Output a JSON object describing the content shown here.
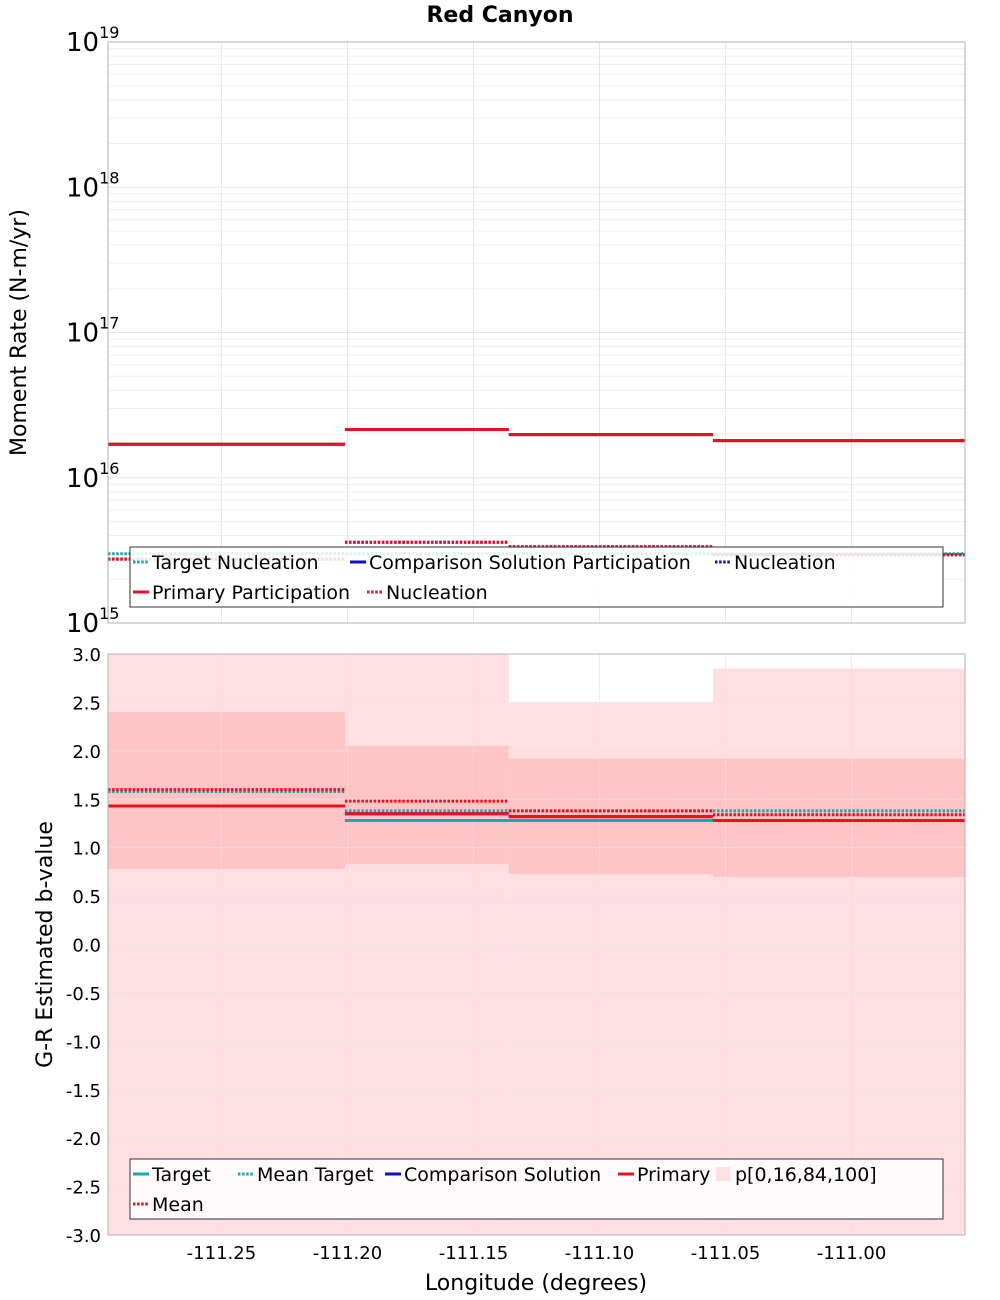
{
  "title": "Red Canyon",
  "colors": {
    "target": "#1aa8a8",
    "comparison": "#1010c8",
    "primary": "#e8121e",
    "band_outer": "#ffdfe1",
    "band_inner": "#ffc4c6",
    "grid": "#e6e6e6"
  },
  "chart_data": [
    {
      "type": "line",
      "subtype": "step",
      "y_scale": "log",
      "ylabel": "Moment Rate (N-m/yr)",
      "xlim": [
        -111.295,
        -110.955
      ],
      "ylim": [
        1000000000000000.0,
        1e+19
      ],
      "y_tick_labels": [
        {
          "base": "10",
          "exp": "15"
        },
        {
          "base": "10",
          "exp": "16"
        },
        {
          "base": "10",
          "exp": "17"
        },
        {
          "base": "10",
          "exp": "18"
        },
        {
          "base": "10",
          "exp": "19"
        }
      ],
      "grid": true,
      "legend_position": "bottom-center",
      "legend": [
        {
          "label": "Target Nucleation",
          "color_key": "target",
          "style": "dotted"
        },
        {
          "label": "Comparison Solution Participation",
          "color_key": "comparison",
          "style": "solid"
        },
        {
          "label": "Nucleation",
          "color_key": "comparison",
          "style": "dotted"
        },
        {
          "label": "Primary Participation",
          "color_key": "primary",
          "style": "solid"
        },
        {
          "label": "Nucleation",
          "color_key": "primary",
          "style": "dotted"
        }
      ],
      "series": [
        {
          "name": "Target Nucleation",
          "color_key": "target",
          "style": "dotted",
          "steps": [
            {
              "x0": -111.295,
              "x1": -110.955,
              "y": 3000000000000000.0
            }
          ]
        },
        {
          "name": "Comparison Solution Participation",
          "color_key": "comparison",
          "style": "solid",
          "steps": [
            {
              "x0": -111.295,
              "x1": -111.201,
              "y": 1.7e+16
            },
            {
              "x0": -111.201,
              "x1": -111.136,
              "y": 2.15e+16
            },
            {
              "x0": -111.136,
              "x1": -111.055,
              "y": 1.98e+16
            },
            {
              "x0": -111.055,
              "x1": -110.955,
              "y": 1.8e+16
            }
          ]
        },
        {
          "name": "Comparison Solution Nucleation",
          "color_key": "comparison",
          "style": "dotted",
          "steps": [
            {
              "x0": -111.295,
              "x1": -111.201,
              "y": 2750000000000000.0
            },
            {
              "x0": -111.201,
              "x1": -111.136,
              "y": 3600000000000000.0
            },
            {
              "x0": -111.136,
              "x1": -111.055,
              "y": 3350000000000000.0
            },
            {
              "x0": -111.055,
              "x1": -110.955,
              "y": 2950000000000000.0
            }
          ]
        },
        {
          "name": "Primary Participation",
          "color_key": "primary",
          "style": "solid",
          "steps": [
            {
              "x0": -111.295,
              "x1": -111.201,
              "y": 1.7e+16
            },
            {
              "x0": -111.201,
              "x1": -111.136,
              "y": 2.15e+16
            },
            {
              "x0": -111.136,
              "x1": -111.055,
              "y": 1.98e+16
            },
            {
              "x0": -111.055,
              "x1": -110.955,
              "y": 1.8e+16
            }
          ]
        },
        {
          "name": "Primary Nucleation",
          "color_key": "primary",
          "style": "dotted",
          "steps": [
            {
              "x0": -111.295,
              "x1": -111.201,
              "y": 2750000000000000.0
            },
            {
              "x0": -111.201,
              "x1": -111.136,
              "y": 3600000000000000.0
            },
            {
              "x0": -111.136,
              "x1": -111.055,
              "y": 3350000000000000.0
            },
            {
              "x0": -111.055,
              "x1": -110.955,
              "y": 2950000000000000.0
            }
          ]
        }
      ]
    },
    {
      "type": "line",
      "subtype": "step",
      "xlabel": "Longitude (degrees)",
      "ylabel": "G-R Estimated b-value",
      "xlim": [
        -111.295,
        -110.955
      ],
      "ylim": [
        -3.0,
        3.0
      ],
      "x_ticks": [
        -111.25,
        -111.2,
        -111.15,
        -111.1,
        -111.05,
        -111.0
      ],
      "x_tick_labels": [
        "-111.25",
        "-111.20",
        "-111.15",
        "-111.10",
        "-111.05",
        "-111.00"
      ],
      "y_ticks": [
        -3.0,
        -2.5,
        -2.0,
        -1.5,
        -1.0,
        -0.5,
        0.0,
        0.5,
        1.0,
        1.5,
        2.0,
        2.5,
        3.0
      ],
      "y_tick_labels": [
        "-3.0",
        "-2.5",
        "-2.0",
        "-1.5",
        "-1.0",
        "-0.5",
        "0.0",
        "0.5",
        "1.0",
        "1.5",
        "2.0",
        "2.5",
        "3.0"
      ],
      "grid": true,
      "legend_position": "bottom-center",
      "legend": [
        {
          "label": "Target",
          "color_key": "target",
          "style": "solid"
        },
        {
          "label": "Mean Target",
          "color_key": "target",
          "style": "dotted"
        },
        {
          "label": "Comparison Solution",
          "color_key": "comparison",
          "style": "solid"
        },
        {
          "label": "Primary",
          "color_key": "primary",
          "style": "solid"
        },
        {
          "label": "p[0,16,84,100]",
          "color_key": "band_outer",
          "style": "box"
        },
        {
          "label": "Mean",
          "color_key": "primary",
          "style": "dotted"
        }
      ],
      "bands": [
        {
          "x0": -111.295,
          "x1": -111.201,
          "p0": -3.0,
          "p16": 0.78,
          "p84": 2.4,
          "p100": 3.0
        },
        {
          "x0": -111.201,
          "x1": -111.136,
          "p0": -3.0,
          "p16": 0.83,
          "p84": 2.05,
          "p100": 3.0
        },
        {
          "x0": -111.136,
          "x1": -111.055,
          "p0": -3.0,
          "p16": 0.73,
          "p84": 1.92,
          "p100": 2.5
        },
        {
          "x0": -111.055,
          "x1": -110.955,
          "p0": -3.0,
          "p16": 0.7,
          "p84": 1.92,
          "p100": 2.85
        }
      ],
      "series": [
        {
          "name": "Target",
          "color_key": "target",
          "style": "solid",
          "steps": [
            {
              "x0": -111.295,
              "x1": -111.201,
              "y": 1.43
            },
            {
              "x0": -111.201,
              "x1": -111.136,
              "y": 1.28
            },
            {
              "x0": -111.136,
              "x1": -111.055,
              "y": 1.28
            },
            {
              "x0": -111.055,
              "x1": -110.955,
              "y": 1.28
            }
          ]
        },
        {
          "name": "Mean Target",
          "color_key": "target",
          "style": "dotted",
          "steps": [
            {
              "x0": -111.295,
              "x1": -111.201,
              "y": 1.58
            },
            {
              "x0": -111.201,
              "x1": -111.136,
              "y": 1.38
            },
            {
              "x0": -111.136,
              "x1": -111.055,
              "y": 1.38
            },
            {
              "x0": -111.055,
              "x1": -110.955,
              "y": 1.38
            }
          ]
        },
        {
          "name": "Comparison Solution",
          "color_key": "comparison",
          "style": "solid",
          "steps": [
            {
              "x0": -111.295,
              "x1": -111.201,
              "y": 1.43
            },
            {
              "x0": -111.201,
              "x1": -111.136,
              "y": 1.35
            },
            {
              "x0": -111.136,
              "x1": -111.055,
              "y": 1.32
            },
            {
              "x0": -111.055,
              "x1": -110.955,
              "y": 1.28
            }
          ]
        },
        {
          "name": "Primary",
          "color_key": "primary",
          "style": "solid",
          "steps": [
            {
              "x0": -111.295,
              "x1": -111.201,
              "y": 1.43
            },
            {
              "x0": -111.201,
              "x1": -111.136,
              "y": 1.35
            },
            {
              "x0": -111.136,
              "x1": -111.055,
              "y": 1.32
            },
            {
              "x0": -111.055,
              "x1": -110.955,
              "y": 1.28
            }
          ]
        },
        {
          "name": "Mean",
          "color_key": "primary",
          "style": "dotted",
          "steps": [
            {
              "x0": -111.295,
              "x1": -111.201,
              "y": 1.6
            },
            {
              "x0": -111.201,
              "x1": -111.136,
              "y": 1.48
            },
            {
              "x0": -111.136,
              "x1": -111.055,
              "y": 1.38
            },
            {
              "x0": -111.055,
              "x1": -110.955,
              "y": 1.34
            }
          ]
        }
      ]
    }
  ]
}
